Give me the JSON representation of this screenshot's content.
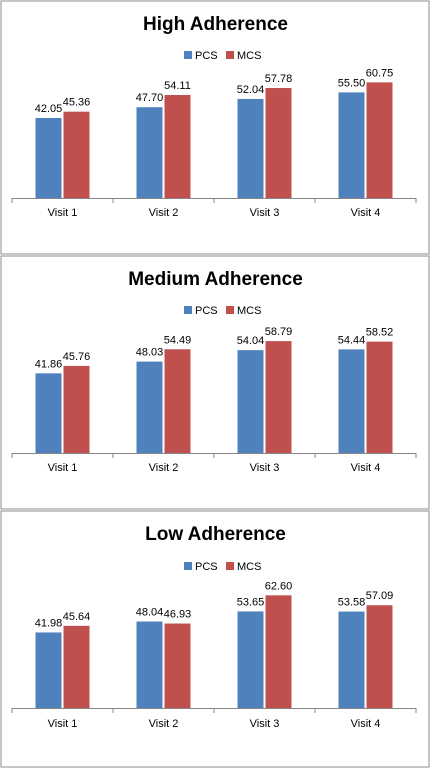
{
  "colors": {
    "pcs": "#4f81bd",
    "mcs": "#c0504d",
    "border": "#8c8c8c",
    "axis": "#868686"
  },
  "chart_data": [
    {
      "type": "bar",
      "title": "High Adherence",
      "categories": [
        "Visit 1",
        "Visit 2",
        "Visit 3",
        "Visit 4"
      ],
      "series": [
        {
          "name": "PCS",
          "values": [
            42.05,
            47.7,
            52.04,
            55.5
          ],
          "labels": [
            "42.05",
            "47.70",
            "52.04",
            "55.50"
          ]
        },
        {
          "name": "MCS",
          "values": [
            45.36,
            54.11,
            57.78,
            60.75
          ],
          "labels": [
            "45.36",
            "54.11",
            "57.78",
            "60.75"
          ]
        }
      ],
      "ylim": [
        0,
        62
      ],
      "legend_position": "top",
      "grid": false
    },
    {
      "type": "bar",
      "title": "Medium Adherence",
      "categories": [
        "Visit 1",
        "Visit 2",
        "Visit 3",
        "Visit 4"
      ],
      "series": [
        {
          "name": "PCS",
          "values": [
            41.86,
            48.03,
            54.04,
            54.44
          ],
          "labels": [
            "41.86",
            "48.03",
            "54.04",
            "54.44"
          ]
        },
        {
          "name": "MCS",
          "values": [
            45.76,
            54.49,
            58.79,
            58.52
          ],
          "labels": [
            "45.76",
            "54.49",
            "58.79",
            "58.52"
          ]
        }
      ],
      "ylim": [
        0,
        62
      ],
      "legend_position": "top",
      "grid": false
    },
    {
      "type": "bar",
      "title": "Low Adherence",
      "categories": [
        "Visit 1",
        "Visit 2",
        "Visit 3",
        "Visit 4"
      ],
      "series": [
        {
          "name": "PCS",
          "values": [
            41.98,
            48.04,
            53.65,
            53.58
          ],
          "labels": [
            "41.98",
            "48.04",
            "53.65",
            "53.58"
          ]
        },
        {
          "name": "MCS",
          "values": [
            45.64,
            46.93,
            62.6,
            57.09
          ],
          "labels": [
            "45.64",
            "46.93",
            "62.60",
            "57.09"
          ]
        }
      ],
      "ylim": [
        0,
        65
      ],
      "legend_position": "top",
      "grid": false
    }
  ]
}
